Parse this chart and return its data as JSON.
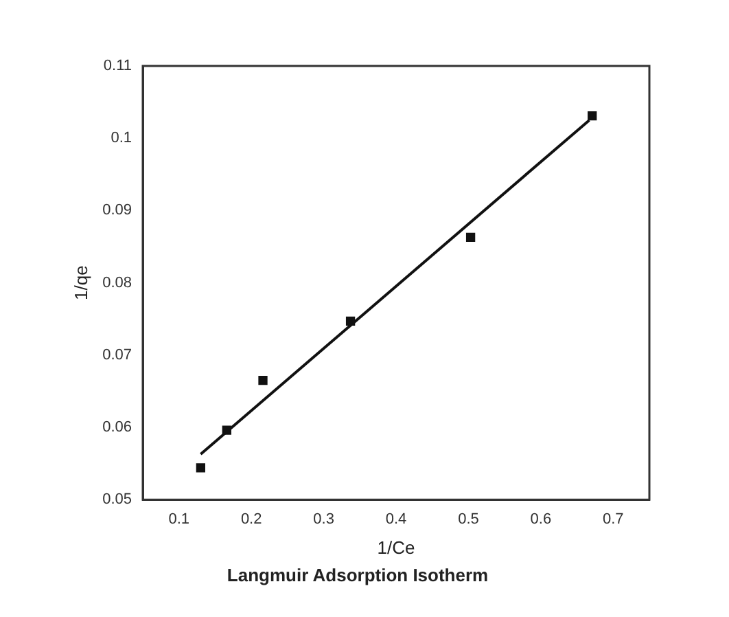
{
  "chart_data": {
    "type": "scatter",
    "title": "Langmuir Adsorption Isotherm",
    "xlabel": "1/Ce",
    "ylabel": "1/qe",
    "xlim": [
      0.05,
      0.75
    ],
    "xticks": [
      0.1,
      0.2,
      0.3,
      0.4,
      0.5,
      0.6,
      0.7
    ],
    "ylim": [
      0.05,
      0.11
    ],
    "yticks": [
      0.05,
      0.06,
      0.07,
      0.08,
      0.09,
      0.1,
      0.11
    ],
    "grid": false,
    "legend": false,
    "series": [
      {
        "type": "scatter",
        "marker": "square",
        "color": "#111111",
        "x": [
          0.13,
          0.166,
          0.216,
          0.337,
          0.503,
          0.671
        ],
        "values": [
          0.0544,
          0.0596,
          0.0665,
          0.0747,
          0.0863,
          0.1031
        ]
      },
      {
        "type": "line",
        "marker": "none",
        "color": "#111111",
        "x": [
          0.13,
          0.667
        ],
        "values": [
          0.0563,
          0.1025
        ]
      }
    ]
  }
}
